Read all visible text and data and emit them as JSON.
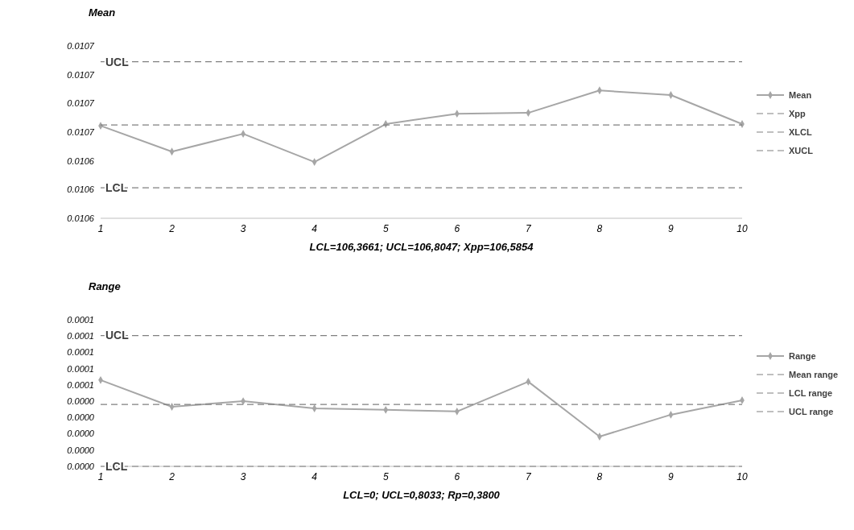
{
  "chart_data": [
    {
      "type": "line",
      "title": "Mean",
      "xlabel": "LCL=106,3661;  UCL=106,8047;  Xpp=106,5854",
      "categories": [
        "1",
        "2",
        "3",
        "4",
        "5",
        "6",
        "7",
        "8",
        "9",
        "10"
      ],
      "series": [
        {
          "name": "Mean",
          "color": "#a6a6a6",
          "marker": "diamond",
          "line_style": "solid",
          "values": [
            0.0106582,
            0.0106492,
            0.0106554,
            0.0106456,
            0.0106588,
            0.0106624,
            0.0106627,
            0.0106705,
            0.0106689,
            0.0106588
          ]
        },
        {
          "name": "Xpp",
          "color": "#808080",
          "marker": "none",
          "line_style": "dashed",
          "values": [
            0.0106585,
            0.0106585,
            0.0106585,
            0.0106585,
            0.0106585,
            0.0106585,
            0.0106585,
            0.0106585,
            0.0106585,
            0.0106585
          ]
        },
        {
          "name": "XLCL",
          "color": "#808080",
          "marker": "none",
          "line_style": "dashed",
          "values": [
            0.0106366,
            0.0106366,
            0.0106366,
            0.0106366,
            0.0106366,
            0.0106366,
            0.0106366,
            0.0106366,
            0.0106366,
            0.0106366
          ]
        },
        {
          "name": "XUCL",
          "color": "#808080",
          "marker": "none",
          "line_style": "dashed",
          "values": [
            0.0106805,
            0.0106805,
            0.0106805,
            0.0106805,
            0.0106805,
            0.0106805,
            0.0106805,
            0.0106805,
            0.0106805,
            0.0106805
          ]
        }
      ],
      "ylim": [
        0.010626,
        0.010686
      ],
      "yticks": [
        {
          "value": 0.010626,
          "label": "0.0106"
        },
        {
          "value": 0.010636,
          "label": "0.0106"
        },
        {
          "value": 0.010646,
          "label": "0.0106"
        },
        {
          "value": 0.010656,
          "label": "0.0107"
        },
        {
          "value": 0.010666,
          "label": "0.0107"
        },
        {
          "value": 0.010676,
          "label": "0.0107"
        },
        {
          "value": 0.010686,
          "label": "0.0107"
        }
      ],
      "annotations": [
        {
          "text": "UCL",
          "x": "1",
          "y": 0.0106805
        },
        {
          "text": "LCL",
          "x": "1",
          "y": 0.0106366
        }
      ],
      "legend": "right",
      "grid": false
    },
    {
      "type": "line",
      "title": "Range",
      "xlabel": "LCL=0;  UCL=0,8033;  Rp=0,3800",
      "categories": [
        "1",
        "2",
        "3",
        "4",
        "5",
        "6",
        "7",
        "8",
        "9",
        "10"
      ],
      "series": [
        {
          "name": "Range",
          "color": "#a6a6a6",
          "marker": "diamond",
          "line_style": "solid",
          "values": [
            5.3e-05,
            3.66e-05,
            4e-05,
            3.56e-05,
            3.47e-05,
            3.37e-05,
            5.2e-05,
            1.83e-05,
            3.17e-05,
            4.06e-05
          ]
        },
        {
          "name": "Mean range",
          "color": "#808080",
          "marker": "none",
          "line_style": "dashed",
          "values": [
            3.8e-05,
            3.8e-05,
            3.8e-05,
            3.8e-05,
            3.8e-05,
            3.8e-05,
            3.8e-05,
            3.8e-05,
            3.8e-05,
            3.8e-05
          ]
        },
        {
          "name": "LCL range",
          "color": "#808080",
          "marker": "none",
          "line_style": "dashed",
          "values": [
            0,
            0,
            0,
            0,
            0,
            0,
            0,
            0,
            0,
            0
          ]
        },
        {
          "name": "UCL range",
          "color": "#808080",
          "marker": "none",
          "line_style": "dashed",
          "values": [
            8.033e-05,
            8.033e-05,
            8.033e-05,
            8.033e-05,
            8.033e-05,
            8.033e-05,
            8.033e-05,
            8.033e-05,
            8.033e-05,
            8.033e-05
          ]
        }
      ],
      "ylim": [
        0,
        9e-05
      ],
      "yticks": [
        {
          "value": 0,
          "label": "0.0000"
        },
        {
          "value": 1e-05,
          "label": "0.0000"
        },
        {
          "value": 2e-05,
          "label": "0.0000"
        },
        {
          "value": 3e-05,
          "label": "0.0000"
        },
        {
          "value": 4e-05,
          "label": "0.0000"
        },
        {
          "value": 5e-05,
          "label": "0.0001"
        },
        {
          "value": 6e-05,
          "label": "0.0001"
        },
        {
          "value": 7e-05,
          "label": "0.0001"
        },
        {
          "value": 8e-05,
          "label": "0.0001"
        },
        {
          "value": 9e-05,
          "label": "0.0001"
        }
      ],
      "annotations": [
        {
          "text": "UCL",
          "x": "1",
          "y": 8.033e-05
        },
        {
          "text": "LCL",
          "x": "1",
          "y": 0
        }
      ],
      "legend": "right",
      "grid": false
    }
  ]
}
